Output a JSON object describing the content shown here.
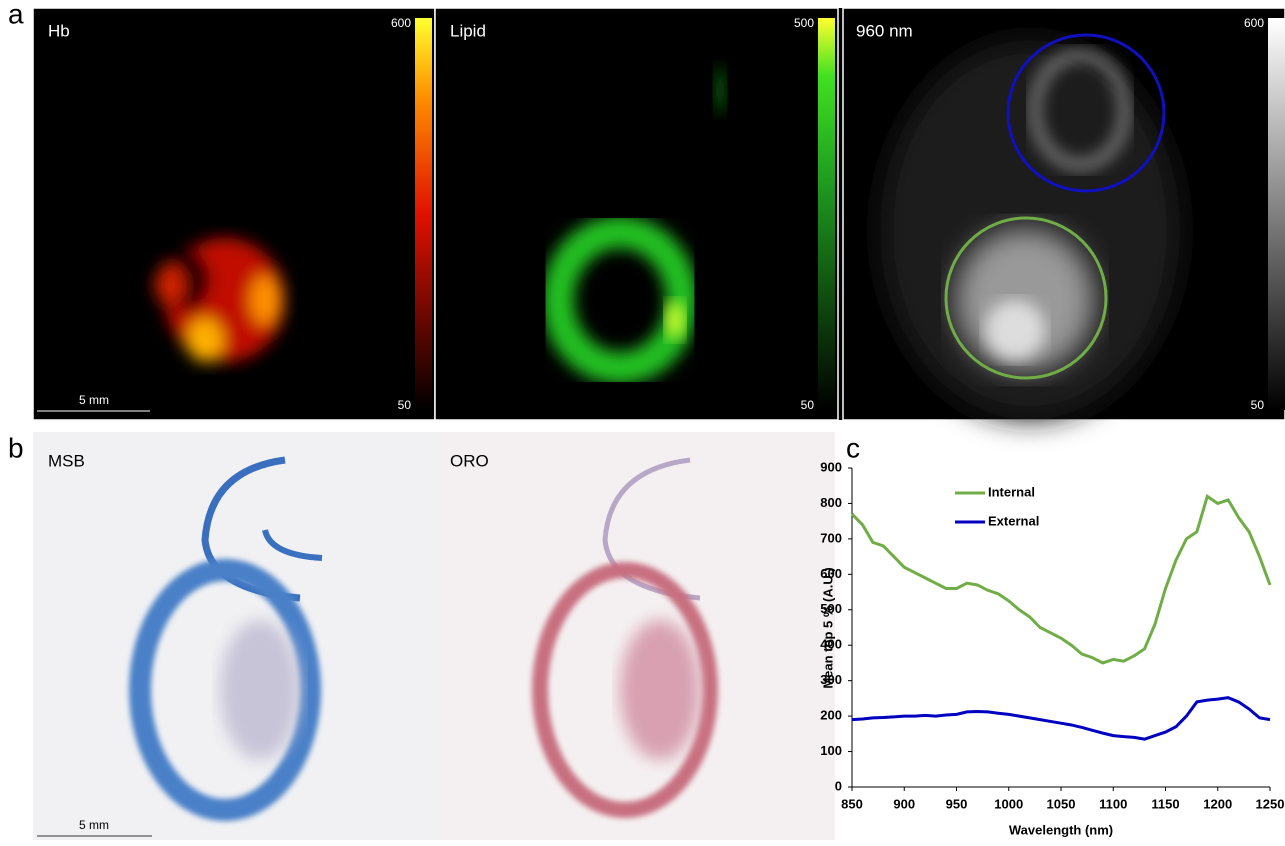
{
  "figure": {
    "a": {
      "label": "a",
      "scale_bar": "5 mm",
      "panels": [
        {
          "title": "Hb",
          "cbar_max": 600,
          "cbar_min": 50
        },
        {
          "title": "Lipid",
          "cbar_max": 500,
          "cbar_min": 50
        },
        {
          "title": "960 nm",
          "cbar_max": 600,
          "cbar_min": 50
        }
      ]
    },
    "b": {
      "label": "b",
      "scale_bar": "5 mm",
      "panels": [
        "MSB",
        "ORO"
      ]
    },
    "c": {
      "label": "c"
    }
  },
  "chart_data": {
    "type": "line",
    "x_label": "Wavelength (nm)",
    "y_label": "Mean top 5 % (A.U.)",
    "x": [
      850,
      860,
      870,
      880,
      890,
      900,
      910,
      920,
      930,
      940,
      950,
      960,
      970,
      980,
      990,
      1000,
      1010,
      1020,
      1030,
      1040,
      1050,
      1060,
      1070,
      1080,
      1090,
      1100,
      1110,
      1120,
      1130,
      1140,
      1150,
      1160,
      1170,
      1180,
      1190,
      1200,
      1210,
      1220,
      1230,
      1240,
      1250
    ],
    "series": [
      {
        "name": "Internal",
        "color": "#70ad47",
        "values": [
          770,
          740,
          690,
          680,
          650,
          620,
          605,
          590,
          575,
          560,
          560,
          575,
          570,
          555,
          545,
          525,
          500,
          480,
          450,
          435,
          420,
          400,
          375,
          365,
          350,
          360,
          355,
          370,
          390,
          460,
          560,
          640,
          700,
          720,
          820,
          800,
          810,
          760,
          720,
          650,
          570
        ]
      },
      {
        "name": "External",
        "color": "#0000c0",
        "values": [
          190,
          192,
          195,
          196,
          198,
          200,
          200,
          202,
          200,
          203,
          205,
          212,
          213,
          212,
          208,
          205,
          200,
          195,
          190,
          185,
          180,
          175,
          168,
          160,
          152,
          145,
          142,
          140,
          135,
          145,
          155,
          170,
          200,
          240,
          245,
          248,
          252,
          240,
          220,
          195,
          190
        ]
      }
    ],
    "xlim": [
      850,
      1250
    ],
    "xticks": [
      850,
      900,
      950,
      1000,
      1050,
      1100,
      1150,
      1200,
      1250
    ],
    "ylim": [
      0,
      900
    ],
    "yticks": [
      0,
      100,
      200,
      300,
      400,
      500,
      600,
      700,
      800,
      900
    ],
    "grid": false,
    "legend": "top-left"
  }
}
